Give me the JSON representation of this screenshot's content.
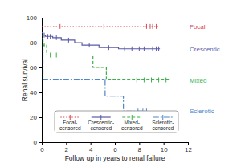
{
  "chart_data": {
    "type": "step",
    "x_label": "Follow up in years to renal failure",
    "y_label": "Renal survival",
    "xlim": [
      0,
      12
    ],
    "xticks": [
      0,
      2,
      4,
      6,
      8,
      10,
      12
    ],
    "ylim": [
      0,
      100
    ],
    "yticks": [
      0,
      20,
      40,
      60,
      80,
      100
    ],
    "grid": false,
    "legend": "bottom",
    "series": [
      {
        "name": "Focal",
        "legend_label": "Focal-censored",
        "color": "#d9474f",
        "line_style": "dotted",
        "x": [
          0,
          9.6
        ],
        "values": [
          93,
          93
        ],
        "censor_x": [
          1.5,
          5.1,
          8.6,
          8.9,
          9.1,
          9.4
        ],
        "censor_values": [
          93,
          93,
          93,
          93,
          93,
          93
        ]
      },
      {
        "name": "Crescentic",
        "legend_label": "Crescentic-censored",
        "color": "#5a5aa8",
        "line_style": "solid",
        "x": [
          0,
          0.1,
          0.3,
          0.9,
          1.6,
          2.7,
          3.3,
          4.7,
          6.3,
          9.7
        ],
        "values": [
          88,
          86,
          85,
          84,
          82,
          80,
          78,
          76,
          75,
          75
        ],
        "censor_x": [
          0.2,
          0.5,
          0.7,
          1.2,
          2.2,
          3.9,
          5.5,
          6.8,
          7.4,
          8.0,
          8.4,
          8.8,
          9.1,
          9.4,
          9.6
        ],
        "censor_values": [
          86,
          85,
          85,
          84,
          82,
          78,
          76,
          75,
          75,
          75,
          75,
          75,
          75,
          75,
          75
        ]
      },
      {
        "name": "Mixed",
        "legend_label": "Mixed-censored",
        "color": "#3cb04a",
        "line_style": "dashed",
        "x": [
          0,
          0.1,
          0.4,
          4.2,
          5.3,
          10.5
        ],
        "values": [
          86,
          78,
          70,
          60,
          50,
          50
        ],
        "censor_x": [
          0.2,
          0.7,
          1.2,
          7.8,
          8.4,
          9.0,
          9.6,
          10.2
        ],
        "censor_values": [
          78,
          70,
          70,
          50,
          50,
          50,
          50,
          50
        ]
      },
      {
        "name": "Sclerotic",
        "legend_label": "Sclerotic-censored",
        "color": "#4f86c6",
        "line_style": "dashdot",
        "x": [
          0,
          0.1,
          5.2,
          6.7,
          8.6
        ],
        "values": [
          83,
          50,
          37,
          25,
          25
        ],
        "censor_x": [
          7.9,
          8.3,
          8.6
        ],
        "censor_values": [
          25,
          25,
          25
        ]
      }
    ]
  }
}
